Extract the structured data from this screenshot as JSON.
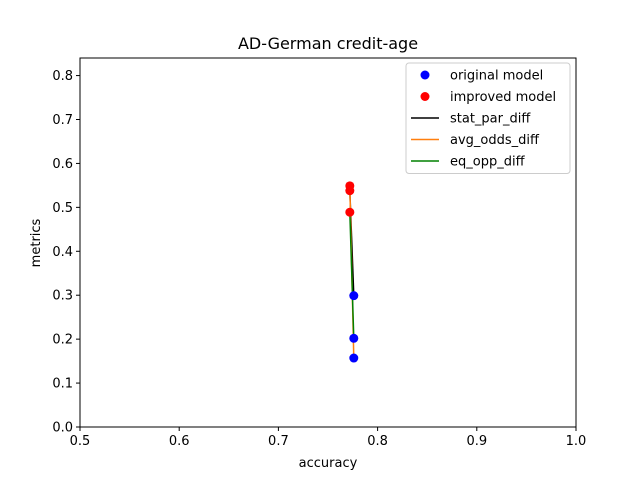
{
  "chart_data": {
    "type": "scatter",
    "title": "AD-German credit-age",
    "xlabel": "accuracy",
    "ylabel": "metrics",
    "xlim": [
      0.5,
      1.0
    ],
    "ylim": [
      0.0,
      0.84
    ],
    "xticks": [
      0.5,
      0.6,
      0.7,
      0.8,
      0.9,
      1.0
    ],
    "yticks": [
      0.0,
      0.1,
      0.2,
      0.3,
      0.4,
      0.5,
      0.6,
      0.7,
      0.8
    ],
    "grid": false,
    "legend_position": "top-right",
    "points": [
      {
        "name": "original model",
        "color": "#0000ff",
        "marker": "circle"
      },
      {
        "name": "improved model",
        "color": "#ff0000",
        "marker": "circle"
      }
    ],
    "series": [
      {
        "name": "stat_par_diff",
        "color": "#000000",
        "original": [
          0.776,
          0.299
        ],
        "improved": [
          0.772,
          0.538
        ]
      },
      {
        "name": "avg_odds_diff",
        "color": "#ff7f0e",
        "original": [
          0.776,
          0.157
        ],
        "improved": [
          0.772,
          0.549
        ]
      },
      {
        "name": "eq_opp_diff",
        "color": "#008000",
        "original": [
          0.776,
          0.202
        ],
        "improved": [
          0.772,
          0.489
        ]
      }
    ]
  }
}
